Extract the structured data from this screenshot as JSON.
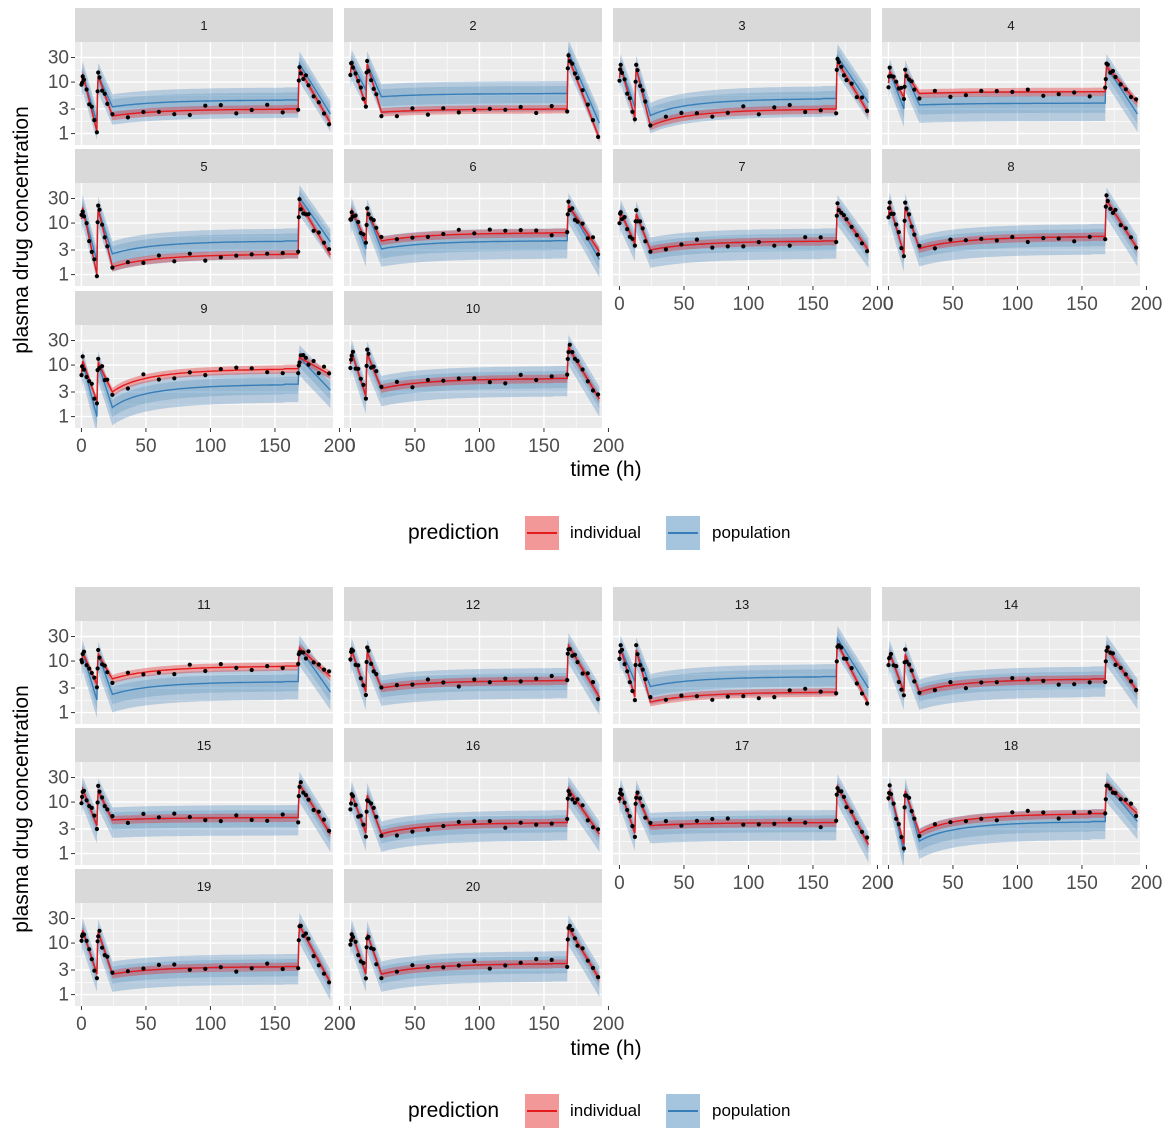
{
  "chart_data": [
    {
      "type": "line",
      "xlabel": "time (h)",
      "ylabel": "plasma drug concentration",
      "y_scale": "log10",
      "xlim": [
        -5,
        195
      ],
      "ylim": [
        0.6,
        60
      ],
      "x_ticks": [
        0,
        50,
        100,
        150,
        200
      ],
      "y_ticks": [
        1,
        3,
        10,
        30
      ],
      "legend": {
        "title": "prediction",
        "entries": [
          "individual",
          "population"
        ],
        "placement": "bottom"
      },
      "colors": {
        "individual": "#e41a1c",
        "population": "#377eb8"
      },
      "panels": [
        {
          "id": "1",
          "ss": 3.0,
          "ratio": 1.5,
          "peak": 18,
          "end": 1.6,
          "trough1": 1.1,
          "trough2": 2.0,
          "dip": 2.2
        },
        {
          "id": "2",
          "ss": 3.0,
          "ratio": 2.0,
          "peak": 30,
          "end": 0.8,
          "trough1": 3.5,
          "trough2": 2.8,
          "dip": 2.6
        },
        {
          "id": "3",
          "ss": 3.0,
          "ratio": 1.6,
          "peak": 25,
          "end": 2.5,
          "trough1": 2.0,
          "trough2": 1.3,
          "dip": 1.4
        },
        {
          "id": "4",
          "ss": 6.5,
          "ratio": 0.6,
          "peak": 20,
          "end": 4.0,
          "trough1": 5.0,
          "trough2": 6.0,
          "dip": 6.0
        },
        {
          "id": "5",
          "ss": 2.5,
          "ratio": 1.8,
          "peak": 25,
          "end": 2.4,
          "trough1": 1.0,
          "trough2": 1.4,
          "dip": 1.4
        },
        {
          "id": "6",
          "ss": 6.5,
          "ratio": 0.7,
          "peak": 22,
          "end": 2.8,
          "trough1": 4.5,
          "trough2": 5.0,
          "dip": 4.5
        },
        {
          "id": "7",
          "ss": 4.5,
          "ratio": 1.0,
          "peak": 20,
          "end": 3.0,
          "trough1": 4.0,
          "trough2": 3.0,
          "dip": 3.0
        },
        {
          "id": "8",
          "ss": 5.5,
          "ratio": 1.0,
          "peak": 28,
          "end": 3.2,
          "trough1": 2.5,
          "trough2": 3.0,
          "dip": 3.2
        },
        {
          "id": "9",
          "ss": 8.5,
          "ratio": 0.5,
          "peak": 14,
          "end": 6.5,
          "trough1": 2.0,
          "trough2": 3.0,
          "dip": 3.0
        },
        {
          "id": "10",
          "ss": 5.5,
          "ratio": 1.0,
          "peak": 22,
          "end": 2.2,
          "trough1": 2.5,
          "trough2": 3.5,
          "dip": 3.5
        },
        {
          "id": "11",
          "ss": 8.0,
          "ratio": 0.5,
          "peak": 18,
          "end": 5.0,
          "trough1": 3.5,
          "trough2": 4.0,
          "dip": 4.5
        },
        {
          "id": "12",
          "ss": 4.2,
          "ratio": 1.0,
          "peak": 20,
          "end": 2.0,
          "trough1": 2.5,
          "trough2": 3.0,
          "dip": 3.0
        },
        {
          "id": "13",
          "ss": 2.5,
          "ratio": 2.0,
          "peak": 22,
          "end": 1.5,
          "trough1": 2.0,
          "trough2": 1.6,
          "dip": 1.6
        },
        {
          "id": "14",
          "ss": 4.5,
          "ratio": 1.0,
          "peak": 18,
          "end": 2.6,
          "trough1": 2.5,
          "trough2": 2.5,
          "dip": 2.5
        },
        {
          "id": "15",
          "ss": 5.0,
          "ratio": 1.0,
          "peak": 22,
          "end": 2.4,
          "trough1": 3.5,
          "trough2": 4.5,
          "dip": 4.5
        },
        {
          "id": "16",
          "ss": 4.0,
          "ratio": 1.0,
          "peak": 18,
          "end": 2.4,
          "trough1": 2.5,
          "trough2": 2.5,
          "dip": 2.4
        },
        {
          "id": "17",
          "ss": 4.0,
          "ratio": 1.0,
          "peak": 20,
          "end": 1.5,
          "trough1": 2.5,
          "trough2": 3.5,
          "dip": 3.5
        },
        {
          "id": "18",
          "ss": 6.0,
          "ratio": 0.7,
          "peak": 22,
          "end": 6.0,
          "trough1": 1.5,
          "trough2": 2.5,
          "dip": 2.5
        },
        {
          "id": "19",
          "ss": 3.5,
          "ratio": 1.0,
          "peak": 22,
          "end": 1.7,
          "trough1": 2.5,
          "trough2": 2.5,
          "dip": 2.5
        },
        {
          "id": "20",
          "ss": 4.0,
          "ratio": 1.0,
          "peak": 20,
          "end": 2.0,
          "trough1": 2.5,
          "trough2": 2.5,
          "dip": 2.5
        }
      ]
    }
  ]
}
